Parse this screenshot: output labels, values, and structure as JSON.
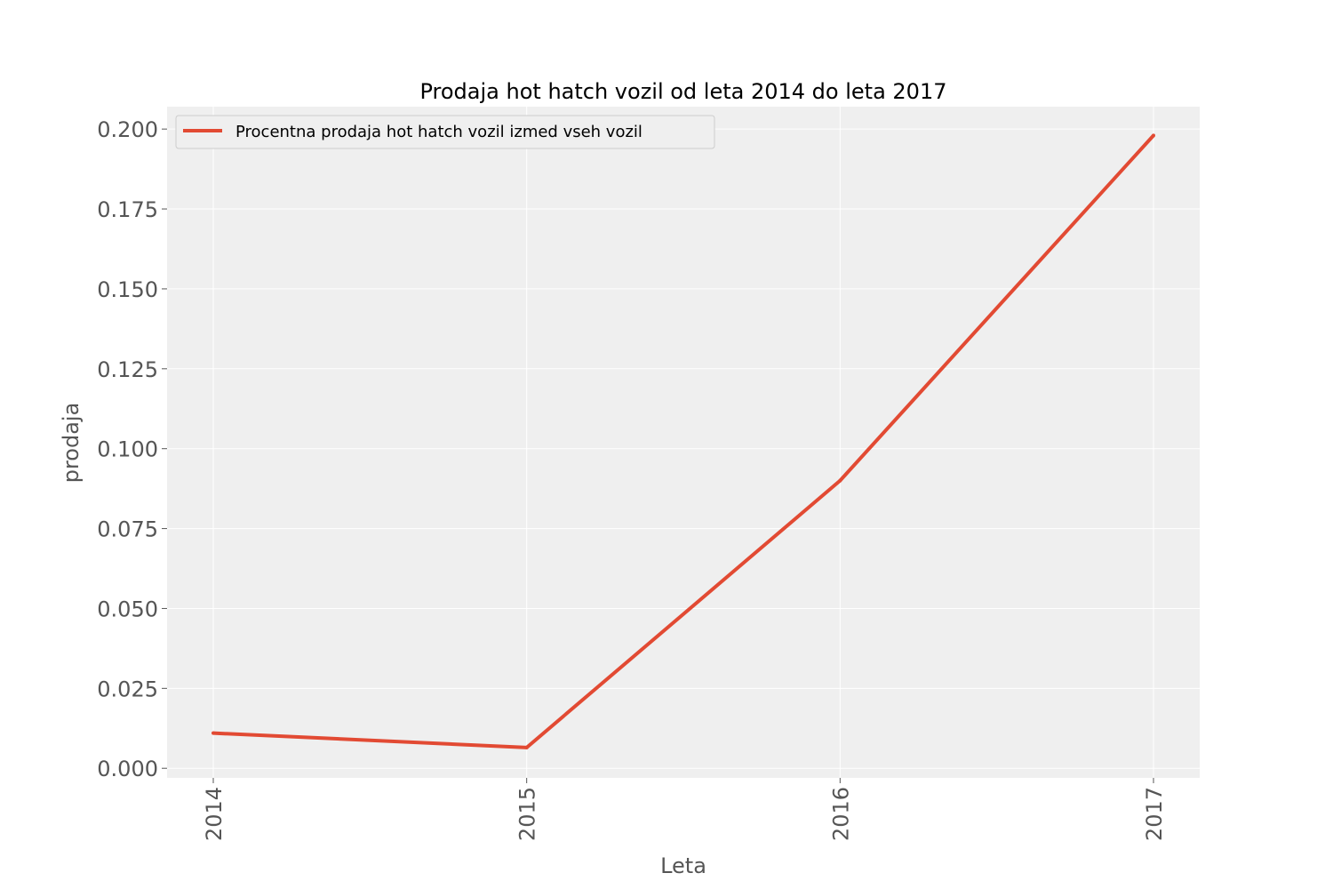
{
  "chart_data": {
    "type": "line",
    "title": "Prodaja hot hatch vozil od leta 2014 do leta 2017",
    "xlabel": "Leta",
    "ylabel": "prodaja",
    "x": [
      "2014",
      "2015",
      "2016",
      "2017"
    ],
    "x_ticks": [
      "2014",
      "2015",
      "2016",
      "2017"
    ],
    "y_ticks": [
      "0.000",
      "0.025",
      "0.050",
      "0.075",
      "0.100",
      "0.125",
      "0.150",
      "0.175",
      "0.200"
    ],
    "ylim": [
      -0.003,
      0.207
    ],
    "series": [
      {
        "name": "Procentna prodaja hot hatch vozil izmed vseh vozil",
        "values": [
          0.011,
          0.0065,
          0.09,
          0.198
        ],
        "color": "#e24a33"
      }
    ],
    "grid": true,
    "legend_position": "upper-left",
    "background_color": "#efefef",
    "grid_color": "#ffffff"
  }
}
